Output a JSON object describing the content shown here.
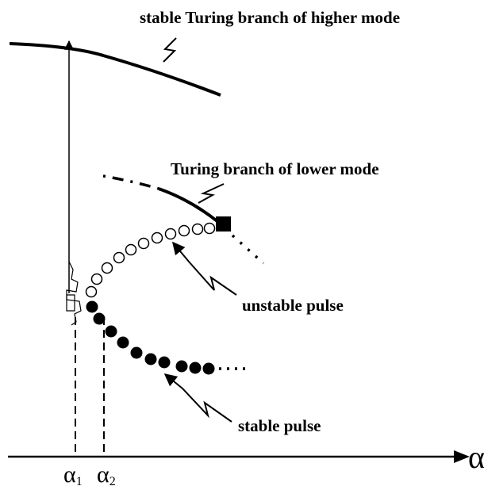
{
  "labels": {
    "higher": "stable Turing branch of higher mode",
    "lower": "Turing branch of lower mode",
    "unstable": "unstable pulse",
    "stable": "stable pulse"
  },
  "axis": {
    "symbol": "α",
    "alpha1": {
      "symbol": "α",
      "subscript": "1"
    },
    "alpha2": {
      "symbol": "α",
      "subscript": "2"
    }
  }
}
